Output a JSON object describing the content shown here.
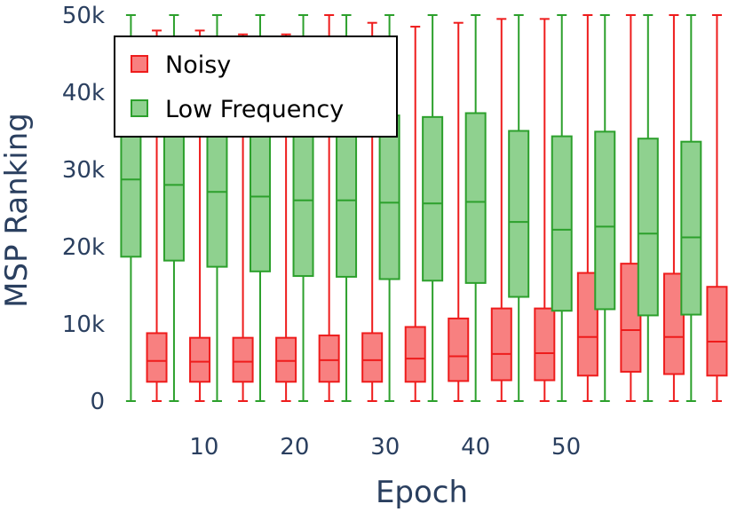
{
  "chart_data": {
    "type": "box",
    "xlabel": "Epoch",
    "ylabel": "MSP Ranking",
    "ylim": [
      0,
      50000
    ],
    "y_ticks": [
      0,
      10000,
      20000,
      30000,
      40000,
      50000
    ],
    "y_tick_labels": [
      "0",
      "10k",
      "20k",
      "30k",
      "40k",
      "50k"
    ],
    "x_ticks": [
      10,
      20,
      30,
      40,
      50
    ],
    "x_tick_labels": [
      "10",
      "20",
      "30",
      "40",
      "50"
    ],
    "legend": {
      "placement": "top-left"
    },
    "series": [
      {
        "name": "Noisy",
        "color": "#ee1c1c",
        "fill": "#f88080",
        "boxes": [
          {
            "epoch": 4,
            "min": 0,
            "q1": 2500,
            "median": 5200,
            "q3": 8800,
            "max": 48000
          },
          {
            "epoch": 9,
            "min": 0,
            "q1": 2500,
            "median": 5100,
            "q3": 8200,
            "max": 48000
          },
          {
            "epoch": 14,
            "min": 0,
            "q1": 2500,
            "median": 5100,
            "q3": 8200,
            "max": 47500
          },
          {
            "epoch": 19,
            "min": 0,
            "q1": 2500,
            "median": 5200,
            "q3": 8200,
            "max": 47500
          },
          {
            "epoch": 24,
            "min": 0,
            "q1": 2500,
            "median": 5300,
            "q3": 8500,
            "max": 50000
          },
          {
            "epoch": 29,
            "min": 0,
            "q1": 2500,
            "median": 5300,
            "q3": 8800,
            "max": 49000
          },
          {
            "epoch": 34,
            "min": 0,
            "q1": 2500,
            "median": 5500,
            "q3": 9600,
            "max": 48500
          },
          {
            "epoch": 39,
            "min": 0,
            "q1": 2600,
            "median": 5800,
            "q3": 10700,
            "max": 49000
          },
          {
            "epoch": 44,
            "min": 0,
            "q1": 2700,
            "median": 6100,
            "q3": 12000,
            "max": 49500
          },
          {
            "epoch": 49,
            "min": 0,
            "q1": 2700,
            "median": 6200,
            "q3": 12000,
            "max": 49500
          },
          {
            "epoch": 54,
            "min": 0,
            "q1": 3300,
            "median": 8300,
            "q3": 16600,
            "max": 50000
          },
          {
            "epoch": 59,
            "min": 0,
            "q1": 3800,
            "median": 9200,
            "q3": 17800,
            "max": 50000
          },
          {
            "epoch": 64,
            "min": 0,
            "q1": 3500,
            "median": 8300,
            "q3": 16500,
            "max": 50000
          },
          {
            "epoch": 69,
            "min": 0,
            "q1": 3300,
            "median": 7700,
            "q3": 14800,
            "max": 50000
          }
        ]
      },
      {
        "name": "Low Frequency",
        "color": "#2ca02c",
        "fill": "#8fd18f",
        "boxes": [
          {
            "epoch": 1,
            "min": 0,
            "q1": 18700,
            "median": 28700,
            "q3": 38000,
            "max": 50000
          },
          {
            "epoch": 6,
            "min": 0,
            "q1": 18200,
            "median": 28000,
            "q3": 37500,
            "max": 50000
          },
          {
            "epoch": 11,
            "min": 0,
            "q1": 17400,
            "median": 27100,
            "q3": 37200,
            "max": 50000
          },
          {
            "epoch": 16,
            "min": 0,
            "q1": 16800,
            "median": 26500,
            "q3": 37000,
            "max": 50000
          },
          {
            "epoch": 21,
            "min": 0,
            "q1": 16200,
            "median": 26000,
            "q3": 36800,
            "max": 50000
          },
          {
            "epoch": 26,
            "min": 0,
            "q1": 16100,
            "median": 26000,
            "q3": 37000,
            "max": 50000
          },
          {
            "epoch": 31,
            "min": 0,
            "q1": 15800,
            "median": 25700,
            "q3": 37000,
            "max": 50000
          },
          {
            "epoch": 36,
            "min": 0,
            "q1": 15600,
            "median": 25600,
            "q3": 36800,
            "max": 50000
          },
          {
            "epoch": 41,
            "min": 0,
            "q1": 15300,
            "median": 25800,
            "q3": 37300,
            "max": 50000
          },
          {
            "epoch": 46,
            "min": 0,
            "q1": 13500,
            "median": 23200,
            "q3": 35000,
            "max": 50000
          },
          {
            "epoch": 51,
            "min": 0,
            "q1": 11700,
            "median": 22200,
            "q3": 34300,
            "max": 50000
          },
          {
            "epoch": 56,
            "min": 0,
            "q1": 11900,
            "median": 22600,
            "q3": 34900,
            "max": 50000
          },
          {
            "epoch": 61,
            "min": 0,
            "q1": 11100,
            "median": 21700,
            "q3": 34000,
            "max": 50000
          },
          {
            "epoch": 66,
            "min": 0,
            "q1": 11200,
            "median": 21200,
            "q3": 33600,
            "max": 50000
          }
        ]
      }
    ]
  }
}
